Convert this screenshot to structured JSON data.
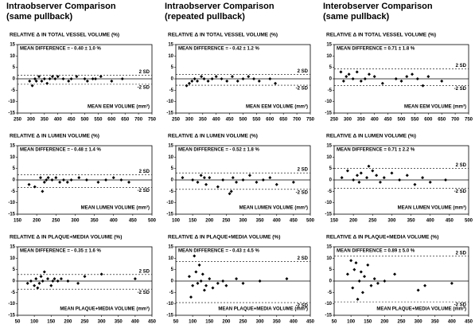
{
  "column_titles": [
    [
      "Intraobserver Comparison",
      "(same pullback)"
    ],
    [
      "Intraobserver Comparison",
      "(repeated pullback)"
    ],
    [
      "Interobserver Comparison",
      "(same pullback)"
    ]
  ],
  "chart_data": [
    {
      "type": "scatter",
      "title": "RELATIVE Δ IN TOTAL VESSEL VOLUME (%)",
      "annotation": "MEAN DIFFERENCE = - 0.40 ± 1.0 %",
      "x_label": "MEAN EEM VOLUME (mm³)",
      "color": "#000000",
      "x": [
        295,
        305,
        315,
        320,
        330,
        340,
        350,
        360,
        370,
        380,
        390,
        400,
        420,
        440,
        450,
        470,
        500,
        510,
        530,
        540,
        560,
        600,
        640
      ],
      "values": [
        -1,
        -3,
        0,
        -1,
        1,
        -1,
        0,
        -2,
        0,
        1,
        0,
        1,
        0,
        -1,
        0,
        1,
        0,
        -1,
        0,
        0,
        1,
        -1,
        0
      ],
      "xlim": [
        250,
        750
      ],
      "xticks": [
        250,
        300,
        350,
        400,
        450,
        500,
        550,
        600,
        650,
        700,
        750
      ],
      "ylim": [
        -15,
        15
      ],
      "yticks": [
        -15,
        -10,
        -5,
        0,
        5,
        10,
        15
      ],
      "zero_line": true,
      "limits": [
        {
          "value": 1.6,
          "label": "2 SD"
        },
        {
          "value": -2.4,
          "label": "-2 SD"
        }
      ]
    },
    {
      "type": "scatter",
      "title": "RELATIVE Δ IN TOTAL VESSEL VOLUME (%)",
      "annotation": "MEAN DIFFERENCE = - 0.42 ± 1.2 %",
      "x_label": "MEAN EEM VOLUME (mm³)",
      "color": "#000000",
      "x": [
        290,
        300,
        310,
        320,
        330,
        345,
        355,
        370,
        385,
        400,
        420,
        440,
        460,
        480,
        500,
        520,
        540,
        560,
        600,
        620
      ],
      "values": [
        -3,
        -2,
        -1,
        0,
        -1,
        1,
        0,
        -1,
        0,
        1,
        0,
        -1,
        1,
        -1,
        0,
        1,
        0,
        -1,
        0,
        -2
      ],
      "xlim": [
        250,
        750
      ],
      "xticks": [
        250,
        300,
        350,
        400,
        450,
        500,
        550,
        600,
        650,
        700,
        750
      ],
      "ylim": [
        -15,
        15
      ],
      "yticks": [
        -15,
        -10,
        -5,
        0,
        5,
        10,
        15
      ],
      "zero_line": true,
      "limits": [
        {
          "value": 1.98,
          "label": "2 SD"
        },
        {
          "value": -2.82,
          "label": "-2 SD"
        }
      ]
    },
    {
      "type": "scatter",
      "title": "RELATIVE Δ IN TOTAL VESSEL VOLUME (%)",
      "annotation": "MEAN DIFFERENCE = 0.71 ± 1.8 %",
      "x_label": "MEAN EEM VOLUME (mm³)",
      "color": "#000000",
      "x": [
        275,
        285,
        295,
        305,
        320,
        335,
        350,
        365,
        380,
        400,
        430,
        480,
        500,
        520,
        540,
        560,
        580,
        600,
        650
      ],
      "values": [
        3,
        -1,
        1,
        2,
        0,
        3,
        -1,
        0,
        2,
        1,
        -2,
        0,
        -1,
        1,
        2,
        0,
        -3,
        1,
        -1
      ],
      "xlim": [
        250,
        750
      ],
      "xticks": [
        250,
        300,
        350,
        400,
        450,
        500,
        550,
        600,
        650,
        700,
        750
      ],
      "ylim": [
        -15,
        15
      ],
      "yticks": [
        -15,
        -10,
        -5,
        0,
        5,
        10,
        15
      ],
      "zero_line": true,
      "limits": [
        {
          "value": 4.31,
          "label": "2 SD"
        },
        {
          "value": -2.89,
          "label": "-2 SD"
        }
      ]
    },
    {
      "type": "scatter",
      "title": "RELATIVE Δ IN LUMEN VOLUME (%)",
      "annotation": "MEAN DIFFERENCE = - 0.48 ± 1.4 %",
      "x_label": "MEAN LUMEN VOLUME (mm³)",
      "color": "#000000",
      "x": [
        180,
        195,
        210,
        215,
        220,
        225,
        230,
        240,
        250,
        260,
        270,
        280,
        290,
        310,
        330,
        360,
        380,
        400,
        420,
        440
      ],
      "values": [
        -2,
        -3,
        1,
        -5,
        -1,
        0,
        1,
        0,
        1,
        -1,
        0,
        -1,
        0,
        1,
        0,
        -1,
        0,
        1,
        0,
        -1
      ],
      "xlim": [
        150,
        500
      ],
      "xticks": [
        150,
        200,
        250,
        300,
        350,
        400,
        450,
        500
      ],
      "ylim": [
        -15,
        15
      ],
      "yticks": [
        -15,
        -10,
        -5,
        0,
        5,
        10,
        15
      ],
      "zero_line": true,
      "limits": [
        {
          "value": 2.32,
          "label": "2 SD"
        },
        {
          "value": -3.28,
          "label": "-2 SD"
        }
      ]
    },
    {
      "type": "scatter",
      "title": "RELATIVE Δ IN LUMEN VOLUME (%)",
      "annotation": "MEAN DIFFERENCE = - 0.52 ± 1.8 %",
      "x_label": "MEAN LUMEN VOLUME (mm³)",
      "color": "#000000",
      "x": [
        120,
        150,
        165,
        175,
        185,
        190,
        200,
        225,
        240,
        260,
        265,
        270,
        280,
        300,
        320,
        340,
        360,
        380,
        400,
        450
      ],
      "values": [
        1,
        0,
        -1,
        2,
        1,
        -2,
        1,
        -3,
        0,
        -6,
        -5,
        1,
        -1,
        0,
        2,
        -1,
        0,
        1,
        -2,
        -1
      ],
      "xlim": [
        100,
        500
      ],
      "xticks": [
        100,
        150,
        200,
        250,
        300,
        350,
        400,
        450,
        500
      ],
      "ylim": [
        -15,
        15
      ],
      "yticks": [
        -15,
        -10,
        -5,
        0,
        5,
        10,
        15
      ],
      "zero_line": true,
      "limits": [
        {
          "value": 3.08,
          "label": "2 SD"
        },
        {
          "value": -4.12,
          "label": "-2 SD"
        }
      ]
    },
    {
      "type": "scatter",
      "title": "RELATIVE Δ IN LUMEN VOLUME (%)",
      "annotation": "MEAN DIFFERENCE = 0.71 ± 2.2 %",
      "x_label": "MEAN LUMEN VOLUME (mm³)",
      "color": "#000000",
      "x": [
        170,
        185,
        200,
        210,
        215,
        220,
        235,
        240,
        250,
        260,
        270,
        280,
        300,
        320,
        340,
        360,
        380,
        400,
        440
      ],
      "values": [
        1,
        4,
        0,
        2,
        -1,
        3,
        1,
        6,
        4,
        2,
        -1,
        1,
        3,
        0,
        2,
        -2,
        1,
        -1,
        0
      ],
      "xlim": [
        150,
        500
      ],
      "xticks": [
        150,
        200,
        250,
        300,
        350,
        400,
        450,
        500
      ],
      "ylim": [
        -15,
        15
      ],
      "yticks": [
        -15,
        -10,
        -5,
        0,
        5,
        10,
        15
      ],
      "zero_line": true,
      "limits": [
        {
          "value": 5.11,
          "label": "2 SD"
        },
        {
          "value": -3.69,
          "label": "-2 SD"
        }
      ]
    },
    {
      "type": "scatter",
      "title": "RELATIVE Δ IN PLAQUE+MEDIA VOLUME (%)",
      "annotation": "MEAN DIFFERENCE = - 0.35 ± 1.6 %",
      "x_label": "MEAN PLAQUE+MEDIA VOLUME (mm³)",
      "color": "#000000",
      "x": [
        80,
        90,
        100,
        105,
        110,
        115,
        120,
        125,
        130,
        140,
        150,
        155,
        160,
        170,
        180,
        200,
        230,
        250,
        300,
        400
      ],
      "values": [
        -1,
        0,
        -2,
        1,
        -3,
        -1,
        2,
        0,
        4,
        1,
        -2,
        0,
        1,
        0,
        1,
        0,
        -1,
        2,
        3,
        1
      ],
      "xlim": [
        50,
        450
      ],
      "xticks": [
        50,
        100,
        150,
        200,
        250,
        300,
        350,
        400,
        450
      ],
      "ylim": [
        -15,
        15
      ],
      "yticks": [
        -15,
        -10,
        -5,
        0,
        5,
        10,
        15
      ],
      "zero_line": true,
      "limits": [
        {
          "value": 2.85,
          "label": "2 SD"
        },
        {
          "value": -3.55,
          "label": "-2 SD"
        }
      ]
    },
    {
      "type": "scatter",
      "title": "RELATIVE Δ IN PLAQUE+MEDIA VOLUME (%)",
      "annotation": "MEAN DIFFERENCE = - 0.43 ± 4.5 %",
      "x_label": "MEAN PLAQUE+MEDIA VOLUME (mm³)",
      "color": "#000000",
      "x": [
        90,
        95,
        100,
        105,
        110,
        115,
        120,
        125,
        130,
        135,
        140,
        150,
        160,
        175,
        190,
        200,
        230,
        250,
        300,
        380
      ],
      "values": [
        2,
        -7,
        -2,
        11,
        4,
        -1,
        7,
        0,
        3,
        -4,
        -2,
        1,
        -3,
        -1,
        0,
        -2,
        1,
        -1,
        0,
        1
      ],
      "xlim": [
        50,
        450
      ],
      "xticks": [
        50,
        100,
        150,
        200,
        250,
        300,
        350,
        400,
        450
      ],
      "ylim": [
        -15,
        15
      ],
      "yticks": [
        -15,
        -10,
        -5,
        0,
        5,
        10,
        15
      ],
      "zero_line": true,
      "limits": [
        {
          "value": 8.57,
          "label": "2 SD"
        },
        {
          "value": -9.43,
          "label": "-2 SD"
        }
      ]
    },
    {
      "type": "scatter",
      "title": "RELATIVE Δ IN PLAQUE+MEDIA VOLUME (%)",
      "annotation": "MEAN DIFFERENCE = 0.89 ± 5.0 %",
      "x_label": "MEAN PLAQUE+MEDIA VOLUME (mm³)",
      "color": "#000000",
      "x": [
        90,
        100,
        105,
        110,
        115,
        120,
        125,
        130,
        135,
        140,
        150,
        160,
        170,
        180,
        200,
        230,
        300,
        320,
        400
      ],
      "values": [
        3,
        9,
        -3,
        5,
        8,
        -8,
        0,
        4,
        -5,
        2,
        7,
        -2,
        1,
        -1,
        0,
        3,
        -4,
        -2,
        -1
      ],
      "xlim": [
        50,
        450
      ],
      "xticks": [
        50,
        100,
        150,
        200,
        250,
        300,
        350,
        400,
        450
      ],
      "ylim": [
        -15,
        15
      ],
      "yticks": [
        -15,
        -10,
        -5,
        0,
        5,
        10,
        15
      ],
      "zero_line": true,
      "limits": [
        {
          "value": 10.89,
          "label": "2 SD"
        },
        {
          "value": -9.11,
          "label": "-2 SD"
        }
      ]
    }
  ]
}
